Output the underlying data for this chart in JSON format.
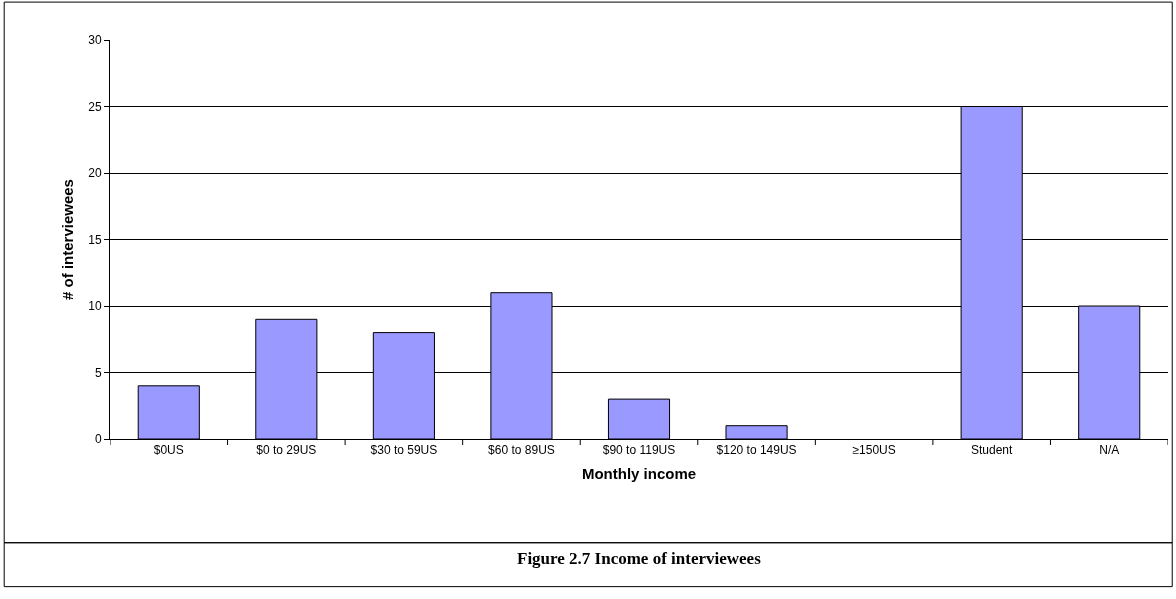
{
  "chart_data": {
    "type": "bar",
    "categories": [
      "$0US",
      "$0 to 29US",
      "$30 to 59US",
      "$60 to 89US",
      "$90 to 119US",
      "$120 to 149US",
      "≥150US",
      "Student",
      "N/A"
    ],
    "values": [
      4,
      9,
      8,
      11,
      3,
      1,
      0,
      25,
      10
    ],
    "color": "#9999ff",
    "xlabel": "Monthly income",
    "ylabel": "# of interviewees",
    "ylim": [
      0,
      30
    ],
    "yticks": [
      0,
      5,
      10,
      15,
      20,
      25,
      30
    ],
    "grid": "y",
    "annotations": [
      "Figure 2.7 Income of interviewees"
    ]
  }
}
